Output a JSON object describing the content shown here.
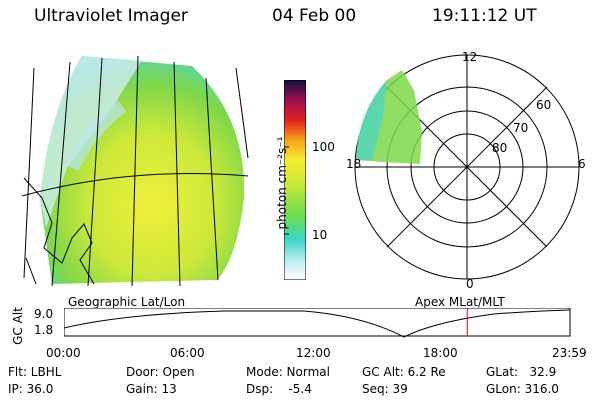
{
  "header": {
    "title": "Ultraviolet Imager",
    "date": "04 Feb 00",
    "time": "19:11:12 UT"
  },
  "colorbar": {
    "label": "photon cm⁻²s⁻¹",
    "ticks": [
      "100",
      "10"
    ]
  },
  "polar": {
    "mlt_labels": [
      "12",
      "18",
      "6",
      "0"
    ],
    "lat_labels": [
      "60",
      "70",
      "80"
    ]
  },
  "map": {
    "left_label": "Geographic Lat/Lon",
    "right_label": "Apex MLat/MLT"
  },
  "timeline": {
    "axis_label": "GC Alt",
    "y_ticks": [
      "9.0",
      "1.8"
    ],
    "x_ticks": [
      "00:00",
      "06:00",
      "12:00",
      "18:00",
      "23:59"
    ],
    "marker_time_fraction": 0.797
  },
  "status": {
    "flt": "Flt: LBHL",
    "ip": "IP: 36.0",
    "door": "Door: Open",
    "gain": "Gain: 13",
    "mode": "Mode: Normal",
    "dsp": "Dsp:    -5.4",
    "gcalt": "GC Alt: 6.2 Re",
    "seq": "Seq: 39",
    "glat": "GLat:   32.9",
    "glon": "GLon: 316.0"
  }
}
